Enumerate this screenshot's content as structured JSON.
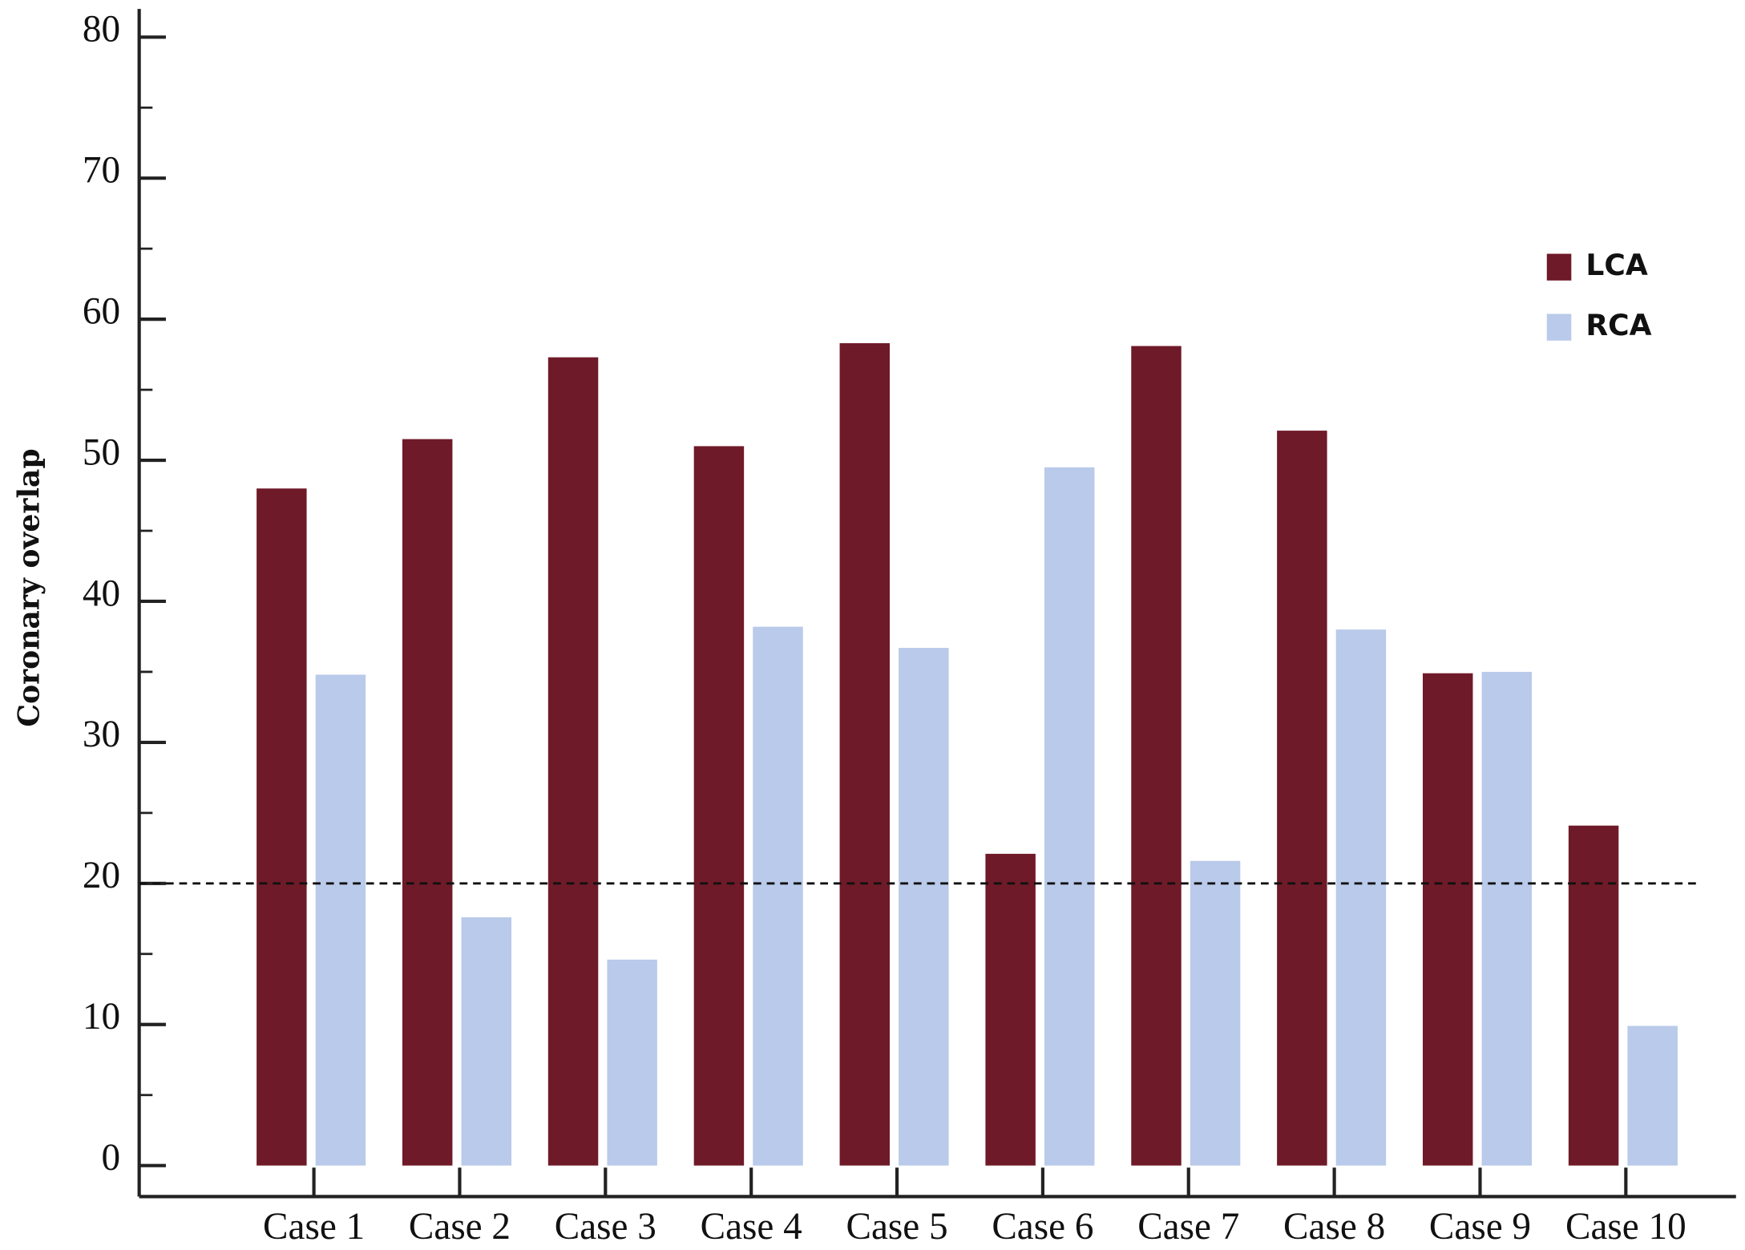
{
  "chart_data": {
    "type": "bar",
    "y_label": "Coronary overlap",
    "categories": [
      "Case 1",
      "Case 2",
      "Case 3",
      "Case 4",
      "Case 5",
      "Case 6",
      "Case 7",
      "Case 8",
      "Case 9",
      "Case 10"
    ],
    "series": [
      {
        "name": "LCA",
        "color": "#6f1a28",
        "values": [
          48.0,
          51.5,
          57.3,
          51.0,
          58.3,
          22.1,
          58.1,
          52.1,
          34.9,
          24.1
        ]
      },
      {
        "name": "RCA",
        "color": "#b9caea",
        "values": [
          34.8,
          17.6,
          14.6,
          38.2,
          36.7,
          49.5,
          21.6,
          38.0,
          35.0,
          9.9
        ]
      }
    ],
    "ylim": [
      -2.2,
      82
    ],
    "yticks": [
      0,
      10,
      20,
      30,
      40,
      50,
      60,
      70,
      80
    ],
    "minor_yticks": [
      5,
      15,
      25,
      35,
      45,
      55,
      65,
      75
    ],
    "reference_line": 20,
    "legend": "upper right",
    "grid": false
  }
}
